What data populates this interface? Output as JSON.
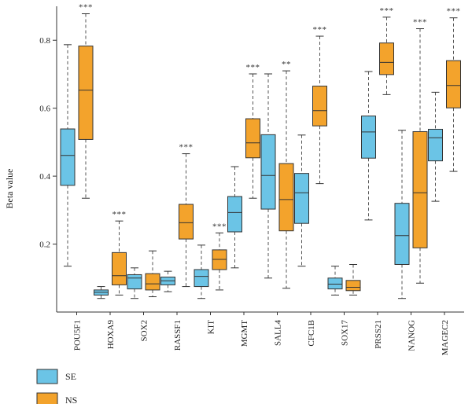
{
  "chart_data": {
    "type": "boxplot",
    "ylabel": "Beta value",
    "ylim": [
      0.0,
      0.9
    ],
    "yticks": [
      "0.2",
      "0.4",
      "0.6",
      "0.8"
    ],
    "categories": [
      "POU5F1",
      "HOXA9",
      "SOX2",
      "RASSF1",
      "KIT",
      "MGMT",
      "SALL4",
      "CFC1B",
      "SOX17",
      "PRSS21",
      "NANOG",
      "MAGEC2"
    ],
    "significance": [
      "***",
      "***",
      "",
      "***",
      "***",
      "***",
      "**",
      "***",
      "",
      "***",
      "***",
      "***"
    ],
    "series": [
      {
        "name": "SE",
        "color": "#6bc4e6",
        "boxes": [
          {
            "min": 0.135,
            "q1": 0.373,
            "median": 0.461,
            "q3": 0.539,
            "max": 0.787
          },
          {
            "min": 0.04,
            "q1": 0.05,
            "median": 0.058,
            "q3": 0.065,
            "max": 0.075
          },
          {
            "min": 0.04,
            "q1": 0.068,
            "median": 0.1,
            "q3": 0.11,
            "max": 0.13
          },
          {
            "min": 0.06,
            "q1": 0.08,
            "median": 0.092,
            "q3": 0.103,
            "max": 0.12
          },
          {
            "min": 0.04,
            "q1": 0.075,
            "median": 0.105,
            "q3": 0.125,
            "max": 0.197
          },
          {
            "min": 0.13,
            "q1": 0.236,
            "median": 0.293,
            "q3": 0.34,
            "max": 0.428
          },
          {
            "min": 0.1,
            "q1": 0.303,
            "median": 0.402,
            "q3": 0.522,
            "max": 0.701
          },
          {
            "min": 0.135,
            "q1": 0.261,
            "median": 0.351,
            "q3": 0.408,
            "max": 0.521
          },
          {
            "min": 0.05,
            "q1": 0.068,
            "median": 0.082,
            "q3": 0.1,
            "max": 0.135
          },
          {
            "min": 0.271,
            "q1": 0.453,
            "median": 0.53,
            "q3": 0.577,
            "max": 0.708
          },
          {
            "min": 0.04,
            "q1": 0.14,
            "median": 0.225,
            "q3": 0.32,
            "max": 0.535
          },
          {
            "min": 0.326,
            "q1": 0.445,
            "median": 0.513,
            "q3": 0.538,
            "max": 0.647
          }
        ]
      },
      {
        "name": "NS",
        "color": "#f3a32c",
        "boxes": [
          {
            "min": 0.335,
            "q1": 0.508,
            "median": 0.653,
            "q3": 0.783,
            "max": 0.878
          },
          {
            "min": 0.05,
            "q1": 0.08,
            "median": 0.107,
            "q3": 0.175,
            "max": 0.268
          },
          {
            "min": 0.045,
            "q1": 0.065,
            "median": 0.083,
            "q3": 0.113,
            "max": 0.18
          },
          {
            "min": 0.075,
            "q1": 0.215,
            "median": 0.263,
            "q3": 0.317,
            "max": 0.466
          },
          {
            "min": 0.065,
            "q1": 0.125,
            "median": 0.155,
            "q3": 0.183,
            "max": 0.233
          },
          {
            "min": 0.335,
            "q1": 0.454,
            "median": 0.498,
            "q3": 0.569,
            "max": 0.701
          },
          {
            "min": 0.07,
            "q1": 0.239,
            "median": 0.331,
            "q3": 0.437,
            "max": 0.71
          },
          {
            "min": 0.378,
            "q1": 0.548,
            "median": 0.593,
            "q3": 0.665,
            "max": 0.812
          },
          {
            "min": 0.05,
            "q1": 0.063,
            "median": 0.073,
            "q3": 0.093,
            "max": 0.14
          },
          {
            "min": 0.64,
            "q1": 0.699,
            "median": 0.735,
            "q3": 0.792,
            "max": 0.868
          },
          {
            "min": 0.085,
            "q1": 0.189,
            "median": 0.351,
            "q3": 0.531,
            "max": 0.834
          },
          {
            "min": 0.414,
            "q1": 0.601,
            "median": 0.667,
            "q3": 0.74,
            "max": 0.866
          }
        ]
      }
    ],
    "legend": {
      "position": "bottom-left"
    },
    "grid": false
  }
}
